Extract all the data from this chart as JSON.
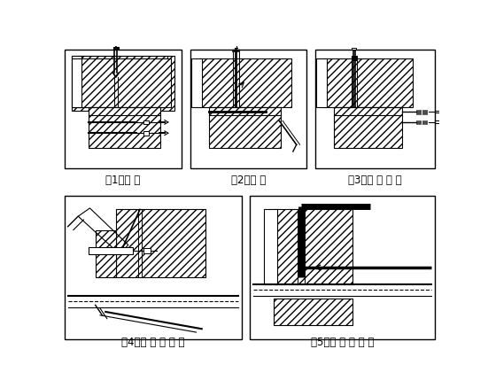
{
  "background_color": "#ffffff",
  "labels": [
    "（1）成 孔",
    "（2）清 孔",
    "（3）丙 酮 清 洗",
    "（4）注 入 胶 粘 剂",
    "（5）插 入 连 接 件"
  ],
  "label_fontsize": 8.5,
  "panels": {
    "p1": [
      5,
      253,
      170,
      175
    ],
    "p2": [
      188,
      253,
      170,
      175
    ],
    "p3": [
      370,
      253,
      175,
      175
    ],
    "p4": [
      5,
      20,
      258,
      210
    ],
    "p5": [
      275,
      20,
      270,
      210
    ]
  }
}
